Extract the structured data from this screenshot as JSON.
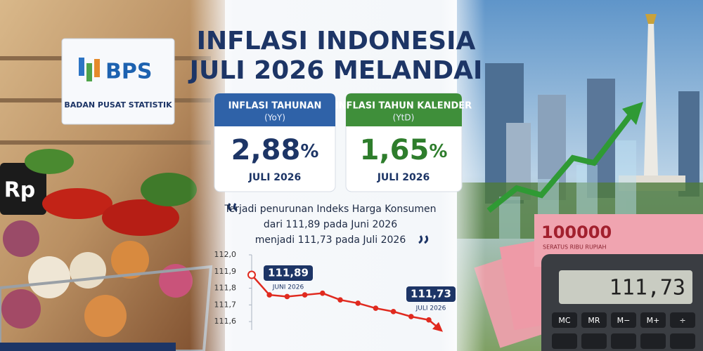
{
  "header": {
    "title_lines": [
      "INFLASI INDONESIA",
      "JULI 2026 MELANDAI"
    ]
  },
  "sign": {
    "logo": "BPS",
    "name": "BADAN PUSAT STATISTIK"
  },
  "price_sign": "Rp",
  "cards": [
    {
      "label": "INFLASI TAHUNAN",
      "sublabel": "(YoY)",
      "value": "2,88",
      "unit": "%",
      "period": "JULI 2026"
    },
    {
      "label": "INFLASI TAHUN KALENDER",
      "sublabel": "(YtD)",
      "value": "1,65",
      "unit": "%",
      "period": "JULI 2026"
    }
  ],
  "quote": {
    "lines": [
      "Terjadi penurunan Indeks Harga Konsumen",
      "dari 111,89 pada Juni 2026",
      "menjadi 111,73 pada Juli 2026"
    ]
  },
  "banknote": {
    "value": "100000",
    "text": "SERATUS RIBU RUPIAH"
  },
  "calculator": {
    "display": "111,73",
    "keys": [
      "MC",
      "MR",
      "M−",
      "M+",
      "÷"
    ]
  },
  "chart_data": {
    "type": "line",
    "values": [
      111.88,
      111.76,
      111.75,
      111.76,
      111.77,
      111.73,
      111.71,
      111.68,
      111.66,
      111.63,
      111.61
    ],
    "color": "#e02a1f",
    "ylim": [
      111.55,
      112.0
    ],
    "yticks": [
      {
        "value": 111.6,
        "label": "111,6"
      },
      {
        "value": 111.7,
        "label": "111,7"
      },
      {
        "value": 111.8,
        "label": "111,8"
      },
      {
        "value": 111.9,
        "label": "111,9"
      },
      {
        "value": 112.0,
        "label": "112,0"
      }
    ],
    "annotations": [
      {
        "value": "111,89",
        "period": "JUNI 2026"
      },
      {
        "value": "111,73",
        "period": "JULI 2026"
      }
    ]
  }
}
